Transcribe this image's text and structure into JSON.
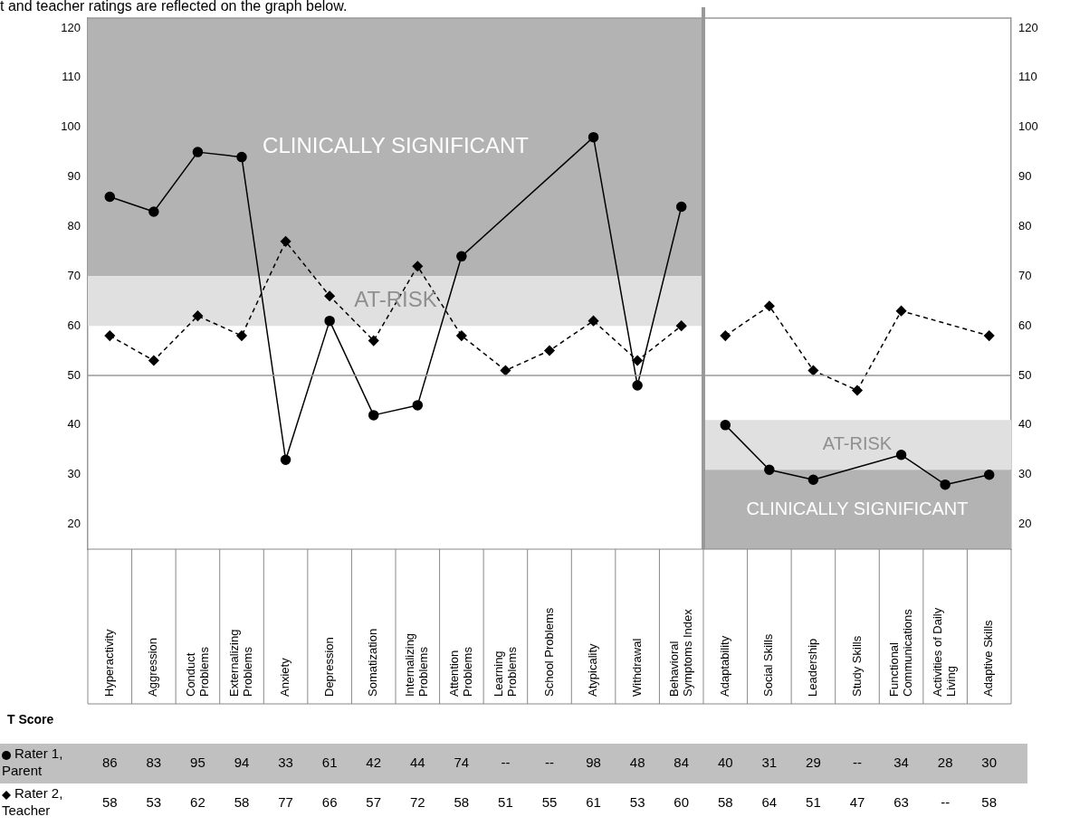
{
  "chart_data": {
    "type": "line",
    "annotations": [
      "t and teacher ratings are reflected on the graph below.",
      "T Score"
    ],
    "categories": [
      "Hyperactivity",
      "Aggression",
      "Conduct Problems",
      "Externalizing Problems",
      "Anxiety",
      "Depression",
      "Somatization",
      "Internalizing Problems",
      "Attention Problems",
      "Learning Problems",
      "School Problems",
      "Atypicality",
      "Withdrawal",
      "Behavioral Symptoms Index",
      "Adaptability",
      "Social Skills",
      "Leadership",
      "Study Skills",
      "Functional Communications",
      "Activities of Daily Living",
      "Adaptive Skills"
    ],
    "series": [
      {
        "name": "Rater 1, Parent",
        "color": "#000000",
        "marker": "circle",
        "line_style": "solid",
        "values": [
          86,
          83,
          95,
          94,
          33,
          61,
          42,
          44,
          74,
          null,
          null,
          98,
          48,
          84,
          40,
          31,
          29,
          null,
          34,
          28,
          30
        ],
        "value_labels": [
          "86",
          "83",
          "95",
          "94",
          "33",
          "61",
          "42",
          "44",
          "74",
          "--",
          "--",
          "98",
          "48",
          "84",
          "40",
          "31",
          "29",
          "--",
          "34",
          "28",
          "30"
        ]
      },
      {
        "name": "Rater 2, Teacher",
        "color": "#000000",
        "marker": "diamond",
        "line_style": "dashed",
        "values": [
          58,
          53,
          62,
          58,
          77,
          66,
          57,
          72,
          58,
          51,
          55,
          61,
          53,
          60,
          58,
          64,
          51,
          47,
          63,
          null,
          58
        ],
        "value_labels": [
          "58",
          "53",
          "62",
          "58",
          "77",
          "66",
          "57",
          "72",
          "58",
          "51",
          "55",
          "61",
          "53",
          "60",
          "58",
          "64",
          "51",
          "47",
          "63",
          "--",
          "58"
        ]
      }
    ],
    "ylim": [
      15,
      122
    ],
    "yticks": [
      20,
      30,
      40,
      50,
      60,
      70,
      80,
      90,
      100,
      110,
      120
    ],
    "y2lim": [
      15,
      122
    ],
    "y2ticks": [
      20,
      30,
      40,
      50,
      60,
      70,
      80,
      90,
      100,
      110,
      120
    ],
    "grid": false,
    "legend": "bottom left",
    "ref_lines": [
      {
        "axis": "y",
        "value": 50,
        "color": "#999999"
      },
      {
        "axis": "x",
        "value": "Adaptability",
        "color": "#999999"
      }
    ],
    "bands": [
      {
        "axis": "y",
        "from": 70,
        "to": 122,
        "label": "CLINICALLY SIGNIFICANT",
        "color": "#b3b3b3"
      },
      {
        "axis": "y",
        "from": 60,
        "to": 70,
        "label": "AT-RISK",
        "color": "#e0e0e0"
      },
      {
        "axis": "y",
        "from": 31,
        "to": 41,
        "label": "AT-RISK",
        "color": "#e0e0e0"
      },
      {
        "axis": "y",
        "from": 15,
        "to": 31,
        "label": "CLINICALLY SIGNIFICANT",
        "color": "#b3b3b3"
      }
    ]
  }
}
